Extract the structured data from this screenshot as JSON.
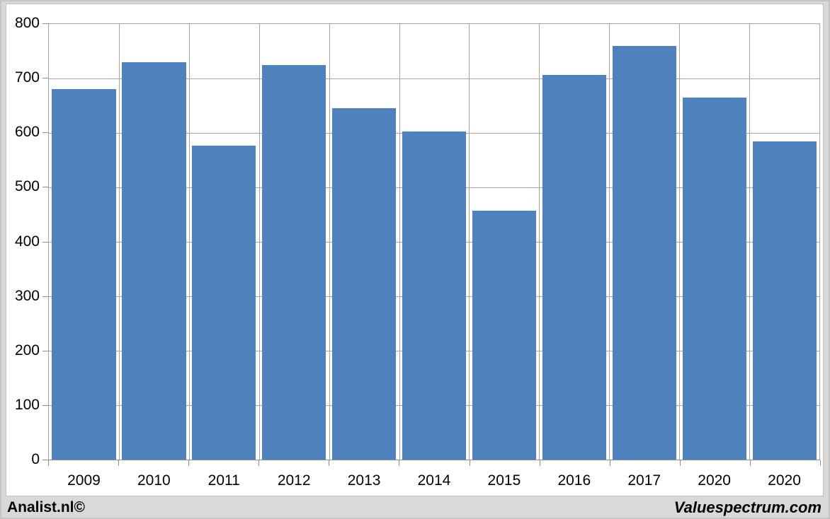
{
  "chart_data": {
    "type": "bar",
    "categories": [
      "2009",
      "2010",
      "2011",
      "2012",
      "2013",
      "2014",
      "2015",
      "2016",
      "2017",
      "2020",
      "2020"
    ],
    "values": [
      680,
      730,
      576,
      725,
      646,
      603,
      457,
      706,
      760,
      665,
      584
    ],
    "title": "",
    "xlabel": "",
    "ylabel": "",
    "ylim": [
      0,
      800
    ],
    "ytick_step": 100,
    "grid": true,
    "legend": false
  },
  "colors": {
    "bar": "#4f81bd",
    "gridline": "#a6a6a6",
    "axis": "#8f8f8f",
    "canvas_bg": "#d9d9d9",
    "plot_bg": "#ffffff",
    "text": "#000000"
  },
  "footer": {
    "left": "Analist.nl©",
    "right": "Valuespectrum.com"
  }
}
